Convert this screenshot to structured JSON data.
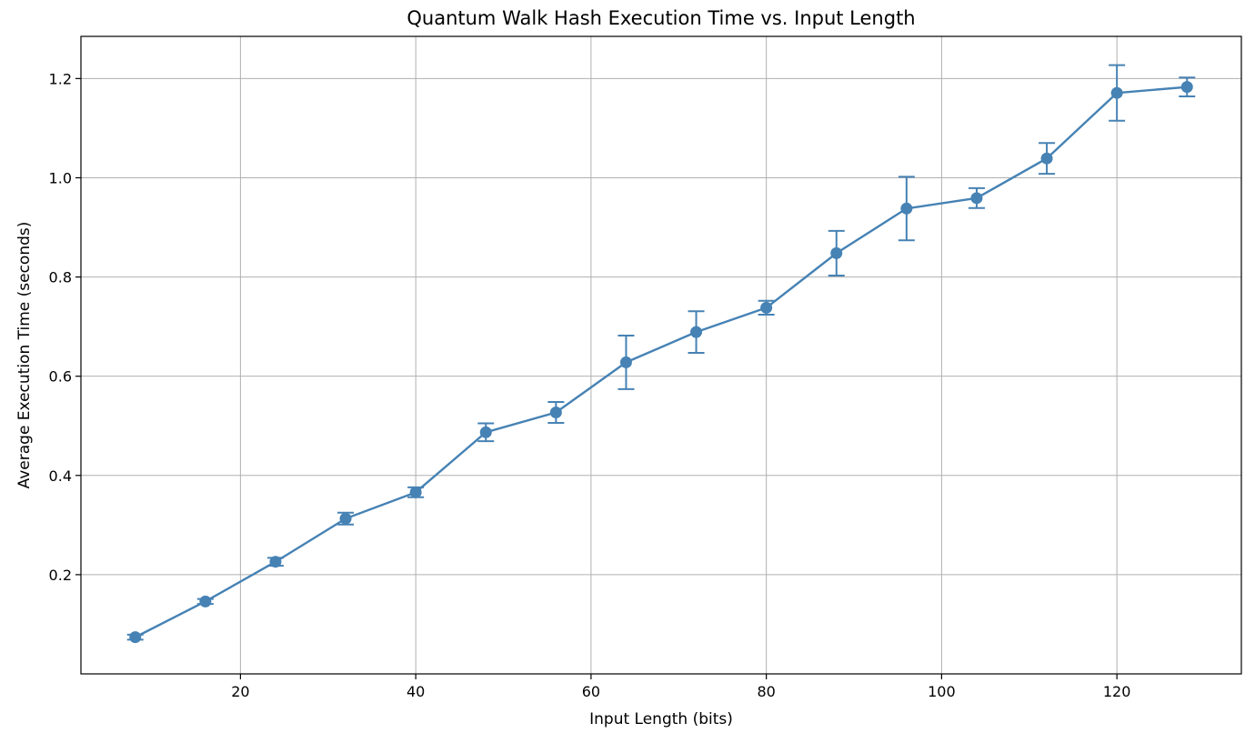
{
  "chart_data": {
    "type": "line",
    "title": "Quantum Walk Hash Execution Time vs. Input Length",
    "xlabel": "Input Length (bits)",
    "ylabel": "Average Execution Time (seconds)",
    "xlim": [
      1.8,
      134.2
    ],
    "ylim": [
      0.0,
      1.285
    ],
    "xticks": [
      20,
      40,
      60,
      80,
      100,
      120
    ],
    "yticks": [
      0.2,
      0.4,
      0.6,
      0.8,
      1.0,
      1.2
    ],
    "grid": true,
    "colors": {
      "series": "#4682b4",
      "grid": "#b0b0b0",
      "axes": "#000000"
    },
    "series": [
      {
        "x": [
          8,
          16,
          24,
          32,
          40,
          48,
          56,
          64,
          72,
          80,
          88,
          96,
          104,
          112,
          120,
          128
        ],
        "y": [
          0.074,
          0.146,
          0.226,
          0.313,
          0.366,
          0.487,
          0.527,
          0.628,
          0.689,
          0.738,
          0.848,
          0.938,
          0.959,
          1.039,
          1.171,
          1.183
        ],
        "yerr": [
          0.005,
          0.005,
          0.008,
          0.012,
          0.01,
          0.018,
          0.021,
          0.054,
          0.042,
          0.014,
          0.045,
          0.064,
          0.02,
          0.031,
          0.056,
          0.019
        ]
      }
    ]
  }
}
